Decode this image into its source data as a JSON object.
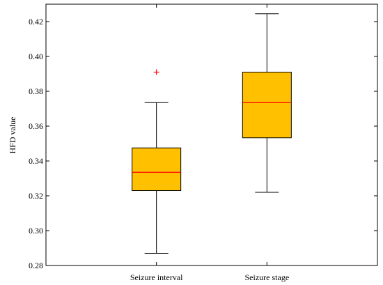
{
  "chart_data": {
    "type": "box",
    "ylabel": "HFD value",
    "xlabel": "",
    "ylim": [
      0.28,
      0.43
    ],
    "yticks": [
      0.28,
      0.3,
      0.32,
      0.34,
      0.36,
      0.38,
      0.4,
      0.42
    ],
    "ytick_labels": [
      "0.28",
      "0.30",
      "0.32",
      "0.34",
      "0.36",
      "0.38",
      "0.40",
      "0.42"
    ],
    "grid": false,
    "categories": [
      "Seizure interval",
      "Seizure stage"
    ],
    "boxes": [
      {
        "label": "Seizure interval",
        "whisker_low": 0.287,
        "q1": 0.323,
        "median": 0.3335,
        "q3": 0.3475,
        "whisker_high": 0.3735,
        "outliers": [
          0.391
        ]
      },
      {
        "label": "Seizure stage",
        "whisker_low": 0.322,
        "q1": 0.3533,
        "median": 0.3735,
        "q3": 0.391,
        "whisker_high": 0.4245,
        "outliers": []
      }
    ],
    "colors": {
      "box_fill": "#FFC000",
      "median": "#FF0000",
      "outlier": "#FF0000",
      "line": "#000000"
    }
  }
}
